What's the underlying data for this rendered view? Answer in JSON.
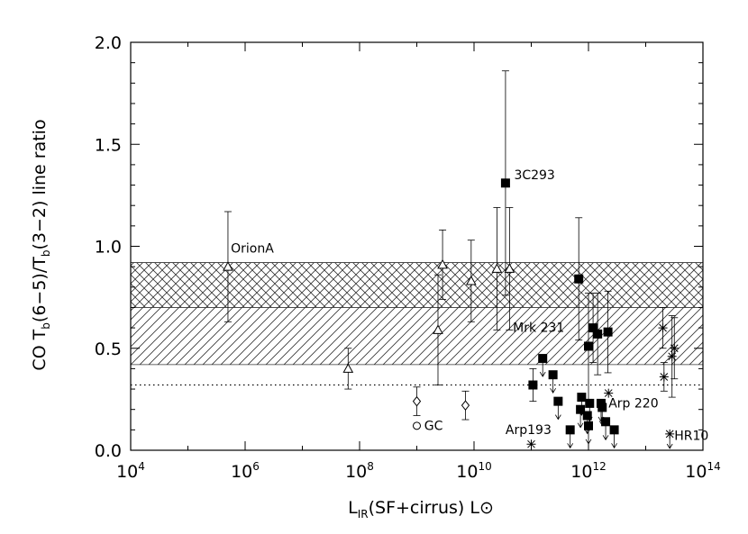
{
  "chart_data": {
    "type": "scatter",
    "xscale": "log10",
    "xlim_exp": [
      4,
      14
    ],
    "ylim": [
      0.0,
      2.0
    ],
    "xlabel": {
      "base": "L",
      "sub": "IR",
      "rest": "(SF+cirrus) L",
      "sun": "⊙"
    },
    "ylabel": {
      "p1": "CO T",
      "s1": "b",
      "p2": "(6−5)/T",
      "s2": "b",
      "p3": "(3−2) line ratio"
    },
    "x_tick_labels": [
      {
        "exp": 4,
        "base": "10",
        "sup": "4"
      },
      {
        "exp": 6,
        "base": "10",
        "sup": "6"
      },
      {
        "exp": 8,
        "base": "10",
        "sup": "8"
      },
      {
        "exp": 10,
        "base": "10",
        "sup": "10"
      },
      {
        "exp": 12,
        "base": "10",
        "sup": "12"
      },
      {
        "exp": 14,
        "base": "10",
        "sup": "14"
      }
    ],
    "y_tick_labels": [
      "0.0",
      "0.5",
      "1.0",
      "1.5",
      "2.0"
    ],
    "hatched_bands": [
      {
        "y0": 0.42,
        "y1": 0.92,
        "pattern": "diagonal"
      },
      {
        "y0": 0.7,
        "y1": 0.92,
        "pattern": "crosshatch"
      }
    ],
    "reference_line": {
      "y": 0.32,
      "style": "dotted"
    },
    "series": [
      {
        "marker": "triangle",
        "points": [
          {
            "logx": 5.7,
            "y": 0.9,
            "yerr": [
              0.27,
              0.27
            ]
          },
          {
            "logx": 7.8,
            "y": 0.4,
            "yerr": [
              0.1,
              0.1
            ]
          },
          {
            "logx": 9.37,
            "y": 0.59,
            "yerr": [
              0.27,
              0.27
            ]
          },
          {
            "logx": 9.45,
            "y": 0.91,
            "yerr": [
              0.17,
              0.17
            ]
          },
          {
            "logx": 9.95,
            "y": 0.83,
            "yerr": [
              0.2,
              0.2
            ]
          },
          {
            "logx": 10.4,
            "y": 0.89,
            "yerr": [
              0.3,
              0.3
            ]
          },
          {
            "logx": 10.62,
            "y": 0.89,
            "yerr": [
              0.3,
              0.3
            ]
          }
        ]
      },
      {
        "marker": "diamond",
        "points": [
          {
            "logx": 9.0,
            "y": 0.24,
            "yerr": [
              0.07,
              0.07
            ]
          },
          {
            "logx": 9.85,
            "y": 0.22,
            "yerr": [
              0.07,
              0.07
            ]
          }
        ]
      },
      {
        "marker": "circle",
        "points": [
          {
            "logx": 9.0,
            "y": 0.12
          }
        ]
      },
      {
        "marker": "filled-square",
        "points": [
          {
            "logx": 10.55,
            "y": 1.31,
            "yerr": [
              0.55,
              0.55
            ]
          },
          {
            "logx": 11.83,
            "y": 0.84,
            "yerr": [
              0.3,
              0.3
            ]
          },
          {
            "logx": 11.03,
            "y": 0.32,
            "yerr": [
              0.08,
              0.08
            ]
          },
          {
            "logx": 11.2,
            "y": 0.45,
            "upper_limit": true
          },
          {
            "logx": 11.38,
            "y": 0.37,
            "upper_limit": true
          },
          {
            "logx": 11.47,
            "y": 0.24,
            "upper_limit": true
          },
          {
            "logx": 11.68,
            "y": 0.1,
            "upper_limit": true
          },
          {
            "logx": 11.86,
            "y": 0.2,
            "upper_limit": true
          },
          {
            "logx": 11.88,
            "y": 0.26,
            "upper_limit": true
          },
          {
            "logx": 11.98,
            "y": 0.17,
            "upper_limit": true
          },
          {
            "logx": 12.0,
            "y": 0.12,
            "upper_limit": true
          },
          {
            "logx": 12.02,
            "y": 0.23,
            "upper_limit": true
          },
          {
            "logx": 12.0,
            "y": 0.51,
            "yerr": [
              0.26,
              0.26
            ]
          },
          {
            "logx": 12.08,
            "y": 0.6,
            "yerr": [
              0.17,
              0.17
            ]
          },
          {
            "logx": 12.16,
            "y": 0.57,
            "yerr": [
              0.2,
              0.2
            ]
          },
          {
            "logx": 12.22,
            "y": 0.23,
            "upper_limit": true
          },
          {
            "logx": 12.24,
            "y": 0.21,
            "upper_limit": true
          },
          {
            "logx": 12.3,
            "y": 0.14,
            "upper_limit": true
          },
          {
            "logx": 12.34,
            "y": 0.58,
            "yerr": [
              0.2,
              0.2
            ]
          },
          {
            "logx": 12.45,
            "y": 0.1,
            "upper_limit": true
          }
        ]
      },
      {
        "marker": "asterisk",
        "points": [
          {
            "logx": 11.0,
            "y": 0.03
          },
          {
            "logx": 12.35,
            "y": 0.28
          },
          {
            "logx": 13.3,
            "y": 0.6,
            "yerr": [
              0.1,
              0.1
            ]
          },
          {
            "logx": 13.32,
            "y": 0.36,
            "yerr": [
              0.07,
              0.07
            ]
          },
          {
            "logx": 13.42,
            "y": 0.08,
            "upper_limit": true
          },
          {
            "logx": 13.46,
            "y": 0.46,
            "yerr": [
              0.2,
              0.2
            ]
          },
          {
            "logx": 13.5,
            "y": 0.5,
            "yerr": [
              0.15,
              0.15
            ]
          }
        ]
      }
    ],
    "annotations": [
      {
        "text": "OrionA",
        "logx": 5.75,
        "y": 0.97
      },
      {
        "text": "3C293",
        "logx": 10.7,
        "y": 1.33
      },
      {
        "text": "Mrk 231",
        "logx": 10.68,
        "y": 0.58
      },
      {
        "text": "GC",
        "logx": 9.13,
        "y": 0.1
      },
      {
        "text": "Arp 220",
        "logx": 12.35,
        "y": 0.21
      },
      {
        "text": "Arp193",
        "logx": 10.55,
        "y": 0.08
      },
      {
        "text": "HR10",
        "logx": 13.5,
        "y": 0.05
      }
    ]
  }
}
